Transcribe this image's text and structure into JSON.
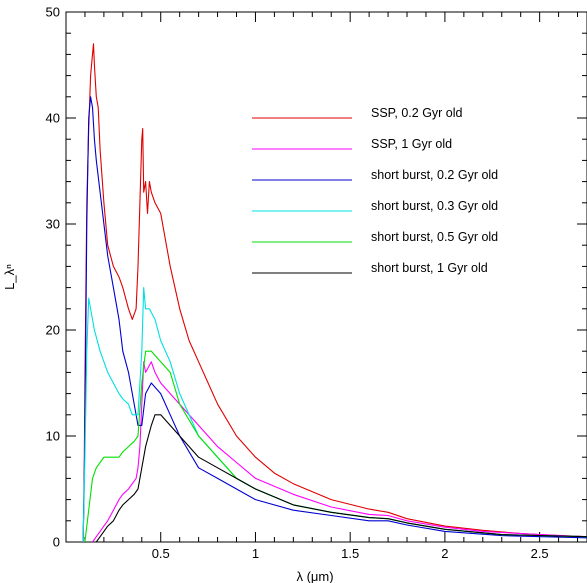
{
  "chart_data": {
    "type": "line",
    "title": "",
    "xlabel": "λ  (μm)",
    "ylabel": "L_λⁿ",
    "xlim": [
      0.0,
      2.75
    ],
    "ylim": [
      0,
      50
    ],
    "xticks": [
      0.5,
      1,
      1.5,
      2,
      2.5
    ],
    "xtick_labels": [
      "0.5",
      "1",
      "1.5",
      "2",
      "2.5"
    ],
    "yticks": [
      0,
      10,
      20,
      30,
      40,
      50
    ],
    "ytick_labels": [
      "0",
      "10",
      "20",
      "30",
      "40",
      "50"
    ],
    "legend_position": "upper-right",
    "grid": false,
    "series": [
      {
        "name": "SSP, 0.2 Gyr old",
        "color": "#e00000",
        "x": [
          0.09,
          0.095,
          0.1,
          0.11,
          0.12,
          0.13,
          0.14,
          0.145,
          0.15,
          0.16,
          0.17,
          0.18,
          0.2,
          0.22,
          0.25,
          0.28,
          0.3,
          0.33,
          0.35,
          0.37,
          0.38,
          0.39,
          0.4,
          0.405,
          0.41,
          0.42,
          0.43,
          0.44,
          0.45,
          0.47,
          0.5,
          0.55,
          0.6,
          0.65,
          0.7,
          0.8,
          0.9,
          1.0,
          1.1,
          1.2,
          1.4,
          1.6,
          1.7,
          1.8,
          2.0,
          2.2,
          2.4,
          2.6,
          2.75
        ],
        "y": [
          0,
          4,
          15,
          32,
          39,
          44,
          46,
          47,
          45,
          42,
          41,
          37,
          32,
          28,
          26,
          25,
          24,
          22,
          21,
          22,
          26,
          32,
          38,
          39,
          33,
          34,
          31,
          34,
          33,
          32,
          31,
          26,
          22,
          19,
          17,
          13,
          10,
          8,
          6.5,
          5.5,
          4,
          3.1,
          2.8,
          2.2,
          1.5,
          1.1,
          0.8,
          0.6,
          0.5
        ]
      },
      {
        "name": "SSP, 1 Gyr old",
        "color": "#ff00ff",
        "x": [
          0.14,
          0.16,
          0.18,
          0.2,
          0.22,
          0.25,
          0.28,
          0.3,
          0.33,
          0.35,
          0.37,
          0.38,
          0.39,
          0.4,
          0.41,
          0.42,
          0.45,
          0.47,
          0.5,
          0.55,
          0.6,
          0.7,
          0.8,
          0.9,
          1.0,
          1.2,
          1.4,
          1.6,
          1.7,
          1.8,
          2.0,
          2.2,
          2.5,
          2.75
        ],
        "y": [
          0,
          0.5,
          1,
          1.5,
          2,
          3,
          4,
          4.5,
          5,
          5.5,
          6,
          7,
          9,
          13,
          17,
          16,
          17,
          16,
          15,
          14,
          13,
          11,
          9,
          7.5,
          6,
          4.5,
          3.3,
          2.6,
          2.5,
          2,
          1.4,
          1,
          0.7,
          0.5
        ]
      },
      {
        "name": "short burst, 0.2 Gyr old",
        "color": "#0000d0",
        "x": [
          0.09,
          0.1,
          0.11,
          0.12,
          0.13,
          0.14,
          0.15,
          0.16,
          0.18,
          0.2,
          0.22,
          0.25,
          0.28,
          0.3,
          0.33,
          0.36,
          0.38,
          0.4,
          0.42,
          0.45,
          0.5,
          0.55,
          0.6,
          0.7,
          0.8,
          0.9,
          1.0,
          1.2,
          1.4,
          1.6,
          1.7,
          1.8,
          2.0,
          2.3,
          2.75
        ],
        "y": [
          0,
          10,
          30,
          40,
          42,
          41,
          38,
          36,
          33,
          30,
          27,
          24,
          21,
          18,
          16,
          13,
          11,
          11,
          14,
          15,
          14,
          12,
          10,
          7,
          6,
          5,
          4,
          3,
          2.5,
          2,
          2,
          1.6,
          1,
          0.6,
          0.4
        ]
      },
      {
        "name": "short burst, 0.3 Gyr old",
        "color": "#00e0e0",
        "x": [
          0.09,
          0.1,
          0.11,
          0.12,
          0.13,
          0.15,
          0.18,
          0.2,
          0.22,
          0.25,
          0.28,
          0.3,
          0.33,
          0.35,
          0.38,
          0.4,
          0.41,
          0.42,
          0.44,
          0.47,
          0.5,
          0.55,
          0.6,
          0.7,
          0.8,
          0.9,
          1.0,
          1.2,
          1.4,
          1.6,
          1.7,
          1.8,
          2.0,
          2.3,
          2.75
        ],
        "y": [
          0,
          8,
          18,
          23,
          22,
          20,
          18,
          17,
          16,
          15,
          14,
          13.5,
          13,
          12,
          12,
          18,
          24,
          22,
          22,
          21,
          19,
          17,
          14,
          10,
          8,
          6,
          5,
          3.5,
          2.8,
          2.3,
          2.2,
          1.8,
          1.2,
          0.7,
          0.5
        ]
      },
      {
        "name": "short burst, 0.5 Gyr old",
        "color": "#00e000",
        "x": [
          0.1,
          0.12,
          0.14,
          0.16,
          0.18,
          0.2,
          0.22,
          0.25,
          0.28,
          0.3,
          0.33,
          0.36,
          0.38,
          0.4,
          0.42,
          0.45,
          0.5,
          0.55,
          0.6,
          0.7,
          0.8,
          0.9,
          1.0,
          1.2,
          1.4,
          1.6,
          1.7,
          1.8,
          2.0,
          2.3,
          2.75
        ],
        "y": [
          0,
          3,
          6,
          7,
          7.5,
          8,
          8,
          8,
          8,
          8.5,
          9,
          9.5,
          10,
          15,
          18,
          18,
          17,
          16,
          13,
          10,
          8,
          6,
          5,
          3.5,
          2.8,
          2.3,
          2.2,
          1.8,
          1.2,
          0.7,
          0.5
        ]
      },
      {
        "name": "short burst, 1 Gyr old",
        "color": "#000000",
        "x": [
          0.16,
          0.18,
          0.2,
          0.22,
          0.25,
          0.28,
          0.3,
          0.33,
          0.36,
          0.38,
          0.4,
          0.42,
          0.45,
          0.47,
          0.5,
          0.55,
          0.6,
          0.7,
          0.8,
          0.9,
          1.0,
          1.2,
          1.4,
          1.6,
          1.7,
          1.8,
          2.0,
          2.3,
          2.75
        ],
        "y": [
          0,
          0.5,
          1,
          1.5,
          2,
          3,
          3.5,
          4,
          4.5,
          5,
          7,
          9,
          11,
          12,
          12,
          11,
          10,
          8,
          7,
          6,
          5,
          3.5,
          2.8,
          2.3,
          2.2,
          1.8,
          1.2,
          0.7,
          0.5
        ]
      }
    ]
  }
}
